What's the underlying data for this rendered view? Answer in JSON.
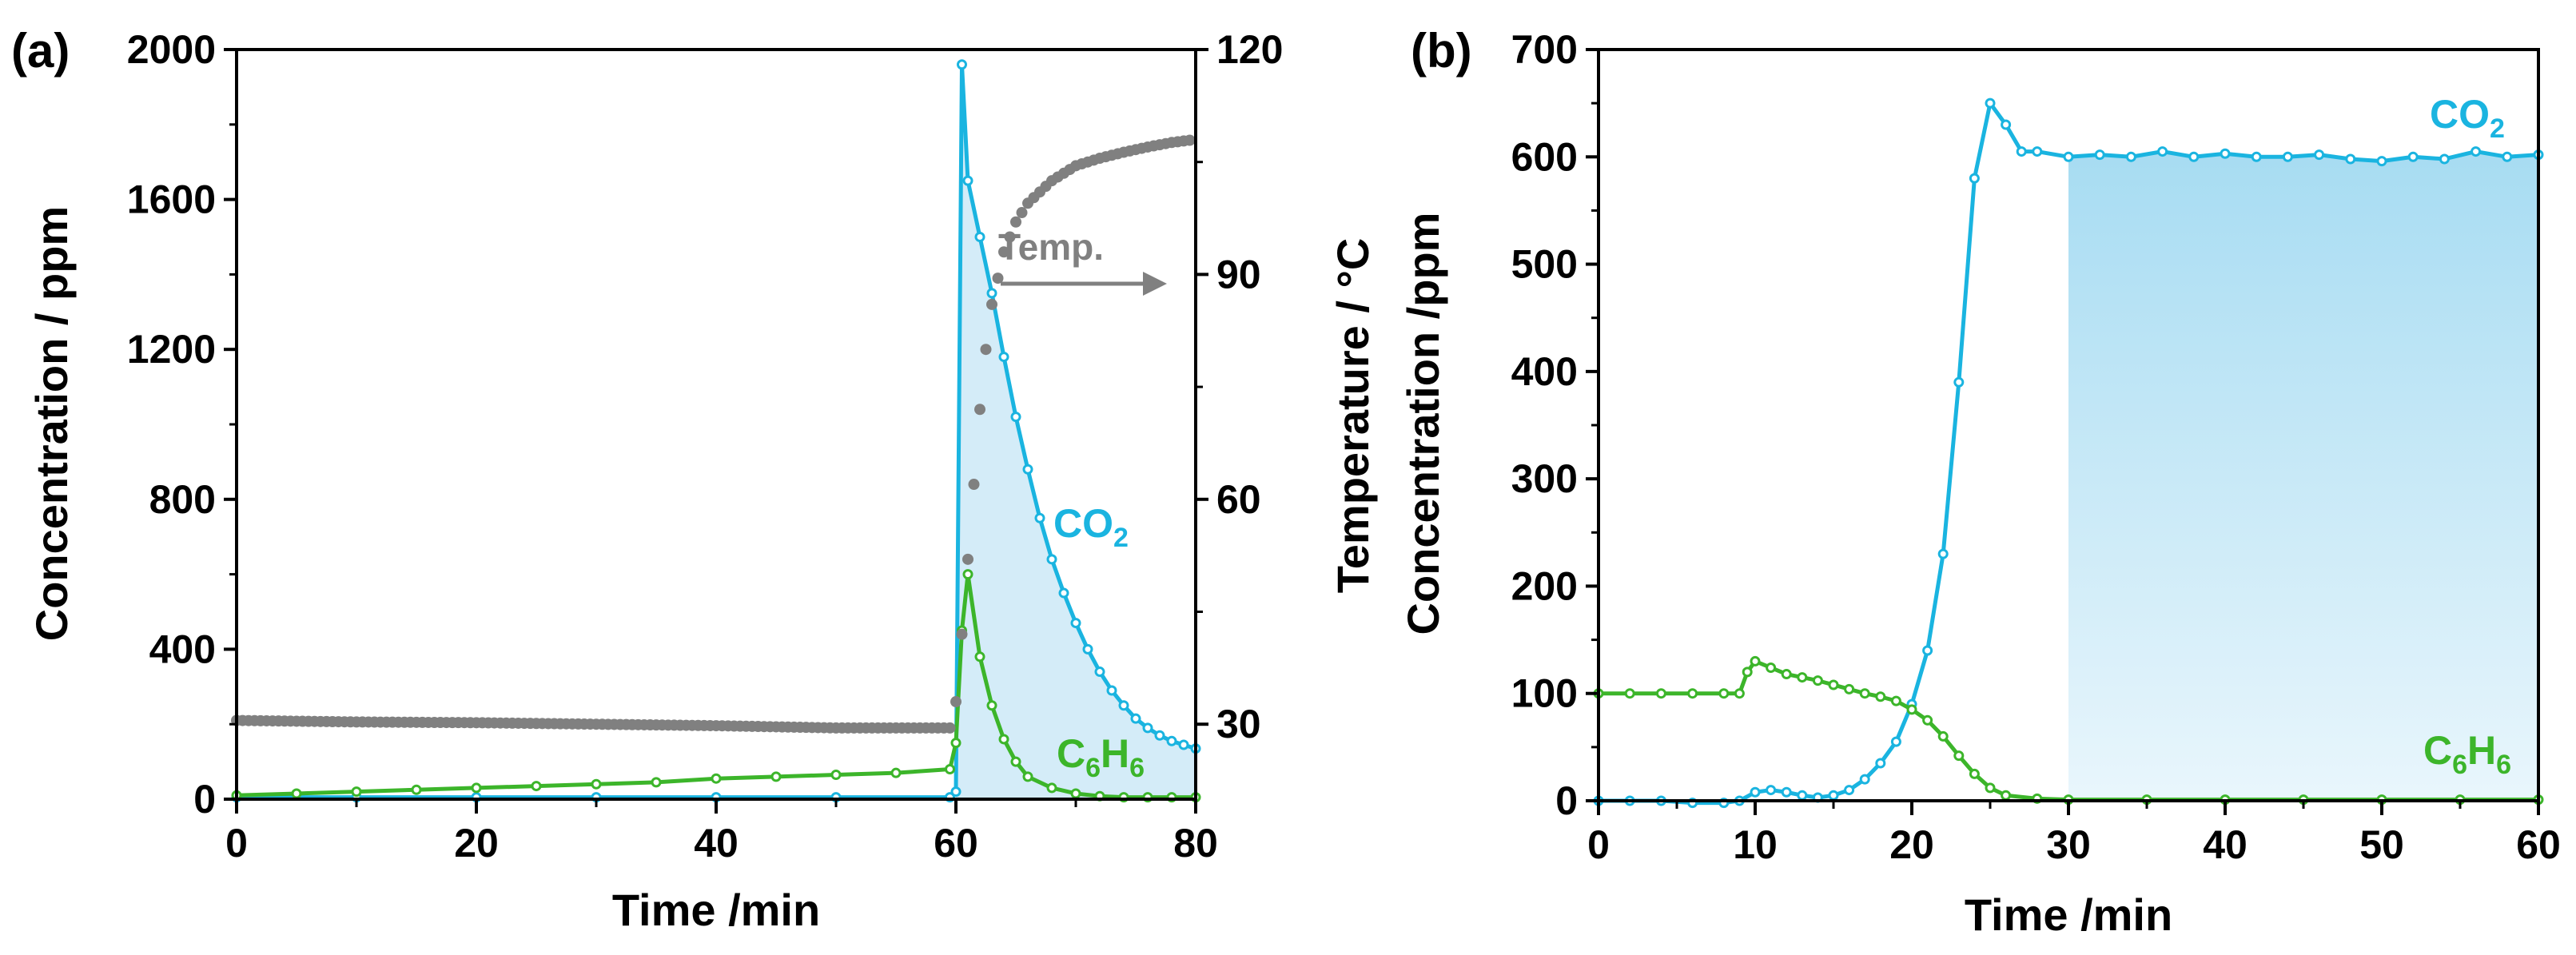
{
  "chart_data": [
    {
      "panel": "(a)",
      "type": "line",
      "xlabel": "Time /min",
      "ylabel": "Concentration / ppm",
      "y2label": "Temperature / °C",
      "xlim": [
        0,
        80
      ],
      "ylim": [
        0,
        2000
      ],
      "y2lim": [
        20,
        120
      ],
      "xticks": [
        "0",
        "20",
        "40",
        "60",
        "80"
      ],
      "yticks": [
        "0",
        "400",
        "800",
        "1200",
        "1600",
        "2000"
      ],
      "y2ticks": [
        "30",
        "60",
        "90",
        "120"
      ],
      "colors": {
        "co2": "#1ab4e0",
        "co2_fill": "#d4ecf8",
        "c6h6": "#3cb52a",
        "temp": "#808080"
      },
      "series": [
        {
          "name": "CO2",
          "label": "CO",
          "label_sub": "2",
          "axis": "left",
          "x": [
            0,
            10,
            20,
            30,
            40,
            50,
            59.5,
            60,
            60.5,
            61,
            62,
            63,
            64,
            65,
            66,
            67,
            68,
            69,
            70,
            71,
            72,
            73,
            74,
            75,
            76,
            77,
            78,
            79,
            80
          ],
          "y": [
            5,
            5,
            5,
            5,
            5,
            5,
            5,
            20,
            1960,
            1650,
            1500,
            1350,
            1180,
            1020,
            880,
            750,
            640,
            550,
            470,
            400,
            340,
            290,
            250,
            215,
            190,
            170,
            155,
            145,
            135
          ]
        },
        {
          "name": "C6H6",
          "label": "C",
          "label_sub": "6",
          "label_mid": "H",
          "label_sub2": "6",
          "axis": "left",
          "x": [
            0,
            5,
            10,
            15,
            20,
            25,
            30,
            35,
            40,
            45,
            50,
            55,
            59.5,
            60,
            60.5,
            61,
            62,
            63,
            64,
            65,
            66,
            68,
            70,
            72,
            74,
            76,
            78,
            80
          ],
          "y": [
            10,
            15,
            20,
            25,
            30,
            35,
            40,
            45,
            55,
            60,
            65,
            70,
            80,
            150,
            450,
            600,
            380,
            250,
            160,
            100,
            60,
            30,
            15,
            8,
            5,
            5,
            5,
            5
          ]
        },
        {
          "name": "Temp.",
          "label": "Temp.",
          "axis": "right",
          "x": [
            0,
            10,
            20,
            30,
            40,
            50,
            59.5,
            60,
            60.5,
            61,
            61.5,
            62,
            62.5,
            63,
            64,
            65,
            66,
            67,
            68,
            70,
            72,
            74,
            76,
            78,
            80
          ],
          "y": [
            30.5,
            30.3,
            30.2,
            30.0,
            29.8,
            29.5,
            29.5,
            33,
            42,
            52,
            62,
            72,
            80,
            86,
            93,
            97,
            99.5,
            101,
            102.5,
            104.5,
            105.5,
            106.3,
            107,
            107.6,
            108
          ]
        }
      ],
      "fill": {
        "series": "CO2",
        "from_x": 60,
        "to_x": 80
      }
    },
    {
      "panel": "(b)",
      "type": "line",
      "xlabel": "Time /min",
      "ylabel": "Concentration /ppm",
      "xlim": [
        0,
        60
      ],
      "ylim": [
        0,
        700
      ],
      "xticks": [
        "0",
        "10",
        "20",
        "30",
        "40",
        "50",
        "60"
      ],
      "yticks": [
        "0",
        "100",
        "200",
        "300",
        "400",
        "500",
        "600",
        "700"
      ],
      "colors": {
        "co2": "#1ab4e0",
        "co2_fill_top": "#a7dcf2",
        "co2_fill_bottom": "#e9f6fc",
        "c6h6": "#3cb52a"
      },
      "series": [
        {
          "name": "CO2",
          "label": "CO",
          "label_sub": "2",
          "x": [
            0,
            2,
            4,
            6,
            8,
            9,
            10,
            11,
            12,
            13,
            14,
            15,
            16,
            17,
            18,
            19,
            20,
            21,
            22,
            23,
            24,
            25,
            26,
            27,
            28,
            30,
            32,
            34,
            36,
            38,
            40,
            42,
            44,
            46,
            48,
            50,
            52,
            54,
            56,
            58,
            60
          ],
          "y": [
            0,
            0,
            0,
            -2,
            -2,
            0,
            8,
            10,
            8,
            5,
            3,
            5,
            10,
            20,
            35,
            55,
            90,
            140,
            230,
            390,
            580,
            650,
            630,
            605,
            605,
            600,
            602,
            600,
            605,
            600,
            603,
            600,
            600,
            602,
            598,
            596,
            600,
            598,
            605,
            600,
            602
          ]
        },
        {
          "name": "C6H6",
          "label": "C",
          "label_sub": "6",
          "label_mid": "H",
          "label_sub2": "6",
          "x": [
            0,
            2,
            4,
            6,
            8,
            9,
            9.5,
            10,
            11,
            12,
            13,
            14,
            15,
            16,
            17,
            18,
            19,
            20,
            21,
            22,
            23,
            24,
            25,
            26,
            28,
            30,
            35,
            40,
            45,
            50,
            55,
            60
          ],
          "y": [
            100,
            100,
            100,
            100,
            100,
            100,
            120,
            130,
            124,
            118,
            115,
            112,
            108,
            104,
            100,
            97,
            93,
            85,
            75,
            60,
            42,
            25,
            12,
            5,
            2,
            1,
            1,
            1,
            1,
            1,
            1,
            1
          ]
        }
      ],
      "fill": {
        "series": "CO2",
        "from_x": 30,
        "to_x": 60
      }
    }
  ]
}
